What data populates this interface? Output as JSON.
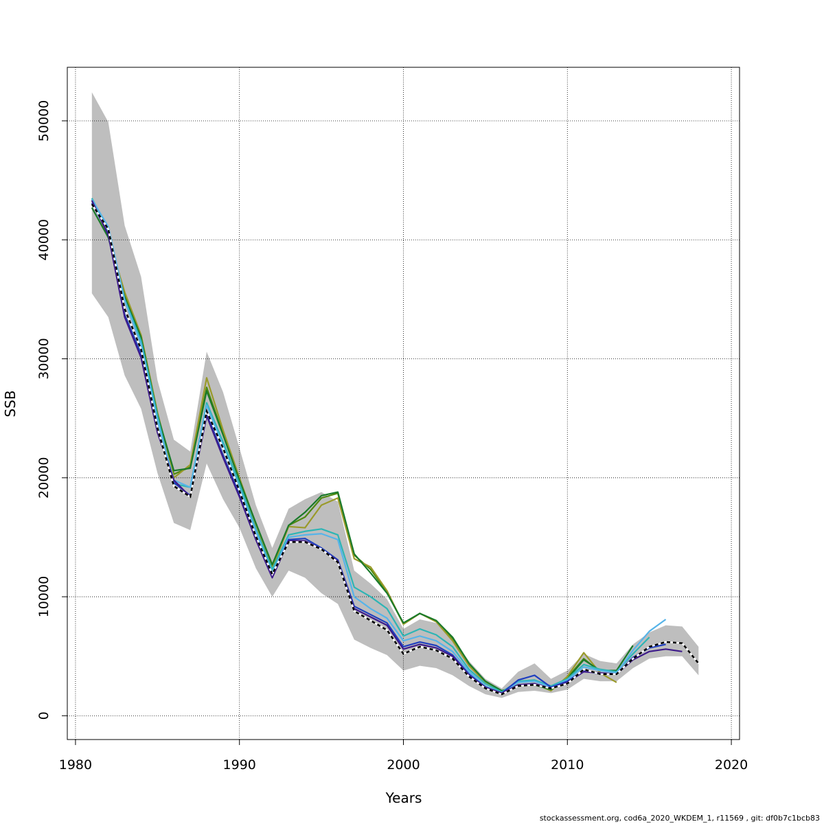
{
  "chart_data": {
    "type": "line",
    "xlabel": "Years",
    "ylabel": "SSB",
    "xlim": [
      1979.5,
      2020.5
    ],
    "ylim": [
      -2000,
      54500
    ],
    "x_ticks": [
      1980,
      1990,
      2000,
      2010,
      2020
    ],
    "y_ticks": [
      0,
      10000,
      20000,
      30000,
      40000,
      50000
    ],
    "grid": true,
    "legend": "none",
    "confidence_band": {
      "color": "#bebebe",
      "x": [
        1981,
        1982,
        1983,
        1984,
        1985,
        1986,
        1987,
        1988,
        1989,
        1990,
        1991,
        1992,
        1993,
        1994,
        1995,
        1996,
        1997,
        1998,
        1999,
        2000,
        2001,
        2002,
        2003,
        2004,
        2005,
        2006,
        2007,
        2008,
        2009,
        2010,
        2011,
        2012,
        2013,
        2014,
        2015,
        2016,
        2017,
        2018
      ],
      "lower": [
        35500,
        33500,
        28600,
        25800,
        20400,
        16200,
        15600,
        21200,
        18200,
        15800,
        12400,
        10000,
        12200,
        11600,
        10300,
        9400,
        6400,
        5700,
        5100,
        3800,
        4200,
        4000,
        3400,
        2500,
        1800,
        1500,
        2000,
        2100,
        1900,
        2200,
        3100,
        2900,
        2900,
        4000,
        4800,
        5000,
        5000,
        3400
      ],
      "upper": [
        52400,
        49900,
        41200,
        36900,
        28200,
        23200,
        22200,
        30600,
        27200,
        22500,
        17700,
        14100,
        17400,
        18200,
        18800,
        18000,
        12200,
        11100,
        9800,
        7300,
        8100,
        7800,
        6500,
        4600,
        3100,
        2300,
        3700,
        4400,
        3100,
        3800,
        5200,
        4600,
        4400,
        6000,
        7000,
        7600,
        7500,
        5800
      ]
    },
    "series": [
      {
        "color": "#000000",
        "dashed": true,
        "last_year": 2018,
        "values": [
          43000,
          40900,
          34200,
          30800,
          24200,
          19300,
          18400,
          25600,
          22500,
          18900,
          15100,
          11900,
          14600,
          14600,
          14000,
          12900,
          8800,
          8000,
          7200,
          5200,
          5800,
          5500,
          4800,
          3300,
          2300,
          1800,
          2500,
          2600,
          2300,
          2700,
          3900,
          3500,
          3500,
          4800,
          5800,
          6200,
          6100,
          4400
        ]
      },
      {
        "color": "#3d1a8a",
        "dashed": false,
        "last_year": 2017,
        "values": [
          43300,
          40400,
          33500,
          30100,
          23800,
          19800,
          18400,
          25200,
          21700,
          18400,
          14800,
          11600,
          14700,
          14700,
          14000,
          13000,
          9000,
          8300,
          7600,
          5600,
          6000,
          5700,
          5000,
          3400,
          2400,
          1900,
          2600,
          2700,
          2300,
          2800,
          3700,
          3600,
          3500,
          4700,
          5400,
          5600,
          5400
        ]
      },
      {
        "color": "#1f3fbf",
        "dashed": false,
        "last_year": 2016,
        "values": [
          43100,
          40500,
          33700,
          30400,
          24000,
          19600,
          18500,
          25400,
          21900,
          18600,
          15000,
          11700,
          14800,
          14900,
          14100,
          13100,
          9200,
          8500,
          7800,
          5800,
          6200,
          5900,
          5100,
          3500,
          2400,
          1900,
          3000,
          3400,
          2400,
          2900,
          3800,
          3500,
          3500,
          4900,
          5700,
          6000
        ]
      },
      {
        "color": "#56b4e9",
        "dashed": false,
        "last_year": 2016,
        "values": [
          43400,
          41100,
          34900,
          31200,
          24800,
          19800,
          19200,
          26100,
          22700,
          19100,
          15500,
          12000,
          15000,
          15200,
          15300,
          14800,
          10000,
          9000,
          8200,
          6300,
          6700,
          6300,
          5400,
          3700,
          2500,
          1900,
          2800,
          2900,
          2400,
          3000,
          4100,
          3800,
          3600,
          5500,
          7100,
          8100
        ]
      },
      {
        "color": "#2db5b5",
        "dashed": false,
        "last_year": 2015,
        "values": [
          43500,
          40800,
          35000,
          31500,
          25200,
          19500,
          19200,
          26300,
          23000,
          19500,
          15700,
          12300,
          15200,
          15500,
          15700,
          15200,
          10800,
          10000,
          9000,
          6700,
          7300,
          6800,
          5800,
          3900,
          2700,
          2000,
          2900,
          3000,
          2500,
          3100,
          4300,
          3900,
          3700,
          5200,
          6600
        ]
      },
      {
        "color": "#1a7a2a",
        "dashed": false,
        "last_year": 2014,
        "values": [
          42700,
          40200,
          35200,
          31800,
          25300,
          20600,
          20800,
          27300,
          23600,
          19800,
          16200,
          12700,
          16000,
          17100,
          18500,
          18800,
          13600,
          12000,
          10300,
          7800,
          8600,
          8000,
          6600,
          4400,
          2900,
          2100,
          2500,
          2600,
          2200,
          3100,
          4700,
          3800,
          3800,
          5900
        ]
      },
      {
        "color": "#9a9a2a",
        "dashed": false,
        "last_year": 2013,
        "values": [
          43400,
          40200,
          35600,
          32000,
          25500,
          20000,
          21100,
          28400,
          24000,
          20000,
          16100,
          12400,
          15900,
          15800,
          17700,
          18300,
          13200,
          12500,
          10500,
          7700,
          8600,
          7900,
          6300,
          4200,
          2800,
          1900,
          2600,
          2700,
          2100,
          3300,
          5300,
          3600,
          2800
        ]
      },
      {
        "color": "#4f8a10",
        "dashed": false,
        "last_year": 2012,
        "values": [
          43300,
          40400,
          35400,
          31800,
          25300,
          20300,
          20900,
          27600,
          23700,
          19900,
          16100,
          12600,
          16000,
          16700,
          18300,
          18700,
          13500,
          12300,
          10400,
          7700,
          8600,
          8000,
          6500,
          4300,
          2900,
          2000,
          2600,
          2600,
          2200,
          3200,
          4800,
          3700
        ]
      }
    ]
  },
  "footer_text": "stockassessment.org, cod6a_2020_WKDEM_1, r11569 , git: df0b7c1bcb83"
}
